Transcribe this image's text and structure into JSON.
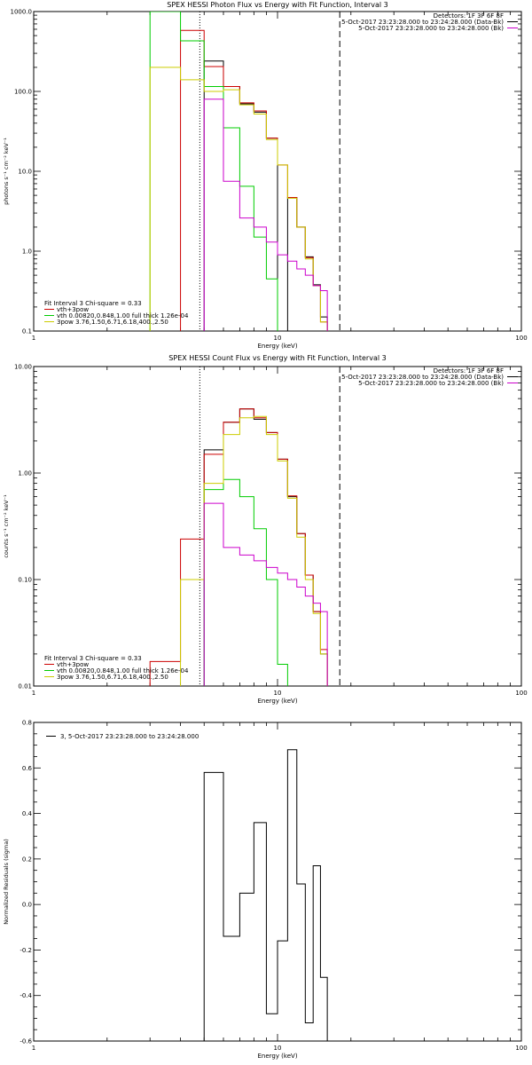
{
  "chart_data": [
    {
      "type": "line",
      "title": "SPEX HESSI Photon Flux vs Energy with Fit Function, Interval 3",
      "xlabel": "Energy (keV)",
      "ylabel": "photons s⁻¹ cm⁻² keV⁻¹",
      "xscale": "log",
      "yscale": "log",
      "xlim": [
        1,
        100
      ],
      "ylim": [
        0.1,
        1000
      ],
      "xticks": [
        {
          "v": 1,
          "label": "1"
        },
        {
          "v": 10,
          "label": "10"
        },
        {
          "v": 100,
          "label": "100"
        }
      ],
      "yticks": [
        {
          "v": 0.1,
          "label": "0.1"
        },
        {
          "v": 1,
          "label": "1.0"
        },
        {
          "v": 10,
          "label": "10.0"
        },
        {
          "v": 100,
          "label": "100.0"
        },
        {
          "v": 1000,
          "label": "1000.0"
        }
      ],
      "header": [
        "Detectors: 1F 3F 6F 8F",
        "5-Oct-2017 23:23:28.000 to 23:24:28.000 (Data-Bk)",
        "5-Oct-2017 23:23:28.000 to 23:24:28.000 (Bk)"
      ],
      "header_colors": [
        "",
        "#000000",
        "#cc00cc"
      ],
      "fit_text": [
        "Fit Interval 3   Chi-square = 0.33",
        "vth+3pow",
        "vth 0.00820,0.848,1.00  full thick 1.26e-04",
        "3pow 3.76,1.50,6.71,6.18,400.,2.50"
      ],
      "fit_colors": [
        "",
        "#cc0000",
        "#00cc00",
        "#cccc00"
      ],
      "vlines": [
        {
          "x": 4.8,
          "style": "dotted"
        },
        {
          "x": 18,
          "style": "dashed"
        }
      ],
      "edges": [
        3,
        4,
        5,
        6,
        7,
        8,
        9,
        10,
        11,
        12,
        13,
        14,
        15,
        16,
        17,
        18
      ],
      "series": [
        {
          "role": "Data-Bk",
          "color": "#000000",
          "values": [
            null,
            null,
            240,
            115,
            70,
            55,
            26,
            null,
            4.7,
            2,
            0.85,
            0.38,
            0.15,
            null,
            null
          ]
        },
        {
          "role": "vth+3pow",
          "color": "#cc0000",
          "values": [
            null,
            580,
            205,
            115,
            72,
            57,
            26,
            12,
            4.7,
            2,
            0.83,
            0.37,
            0.13,
            null,
            null
          ]
        },
        {
          "role": "vth",
          "color": "#00cc00",
          "values": [
            1000,
            430,
            115,
            35,
            6.5,
            1.5,
            0.45,
            0.05,
            null,
            null,
            null,
            null,
            null,
            null,
            null
          ]
        },
        {
          "role": "3pow",
          "color": "#cccc00",
          "values": [
            200,
            140,
            100,
            105,
            68,
            52,
            25,
            12,
            4.6,
            2,
            0.8,
            0.37,
            0.13,
            null,
            null
          ]
        },
        {
          "role": "Bk",
          "color": "#cc00cc",
          "values": [
            null,
            null,
            80,
            7.5,
            2.6,
            2,
            1.3,
            0.9,
            0.75,
            0.6,
            0.5,
            0.37,
            0.32,
            null,
            null
          ]
        }
      ]
    },
    {
      "type": "line",
      "title": "SPEX HESSI Count Flux vs Energy with Fit Function, Interval 3",
      "xlabel": "Energy (keV)",
      "ylabel": "counts s⁻¹ cm⁻² keV⁻¹",
      "xscale": "log",
      "yscale": "log",
      "xlim": [
        1,
        100
      ],
      "ylim": [
        0.01,
        10
      ],
      "xticks": [
        {
          "v": 1,
          "label": "1"
        },
        {
          "v": 10,
          "label": "10"
        },
        {
          "v": 100,
          "label": "100"
        }
      ],
      "yticks": [
        {
          "v": 0.01,
          "label": "0.01"
        },
        {
          "v": 0.1,
          "label": "0.10"
        },
        {
          "v": 1,
          "label": "1.00"
        },
        {
          "v": 10,
          "label": "10.00"
        }
      ],
      "header": [
        "Detectors: 1F 3F 6F 8F",
        "5-Oct-2017 23:23:28.000 to 23:24:28.000 (Data-Bk)",
        "5-Oct-2017 23:23:28.000 to 23:24:28.000 (Bk)"
      ],
      "header_colors": [
        "",
        "#000000",
        "#cc00cc"
      ],
      "fit_text": [
        "Fit Interval 3   Chi-square = 0.33",
        "vth+3pow",
        "vth 0.00820,0.848,1.00  full thick 1.26e-04",
        "3pow 3.76,1.50,6.71,6.18,400.,2.50"
      ],
      "fit_colors": [
        "",
        "#cc0000",
        "#00cc00",
        "#cccc00"
      ],
      "vlines": [
        {
          "x": 4.8,
          "style": "dotted"
        },
        {
          "x": 18,
          "style": "dashed"
        }
      ],
      "edges": [
        3,
        4,
        5,
        6,
        7,
        8,
        9,
        10,
        11,
        12,
        13,
        14,
        15,
        16,
        17,
        18,
        19
      ],
      "series": [
        {
          "role": "Data-Bk",
          "color": "#000000",
          "values": [
            null,
            null,
            1.65,
            3,
            4,
            3.2,
            2.4,
            1.35,
            0.6,
            0.27,
            0.11,
            0.05,
            0.02,
            null,
            null,
            null
          ]
        },
        {
          "role": "vth+3pow",
          "color": "#cc0000",
          "values": [
            0.017,
            0.24,
            1.5,
            3,
            4,
            3.3,
            2.4,
            1.35,
            0.61,
            0.27,
            0.11,
            0.05,
            0.022,
            null,
            null,
            null
          ]
        },
        {
          "role": "vth",
          "color": "#00cc00",
          "values": [
            null,
            null,
            0.7,
            0.87,
            0.6,
            0.3,
            0.1,
            0.016,
            null,
            null,
            null,
            null,
            null,
            null,
            null,
            null
          ]
        },
        {
          "role": "3pow",
          "color": "#cccc00",
          "values": [
            null,
            0.1,
            0.8,
            2.3,
            3.3,
            3.4,
            2.3,
            1.3,
            0.58,
            0.25,
            0.1,
            0.048,
            0.02,
            null,
            null,
            null
          ]
        },
        {
          "role": "Bk",
          "color": "#cc00cc",
          "values": [
            null,
            null,
            0.52,
            0.2,
            0.17,
            0.15,
            0.13,
            0.115,
            0.1,
            0.085,
            0.07,
            0.06,
            0.05,
            null,
            null,
            null
          ]
        }
      ]
    },
    {
      "type": "line",
      "title": "",
      "xlabel": "Energy (keV)",
      "ylabel": "Normalized Residuals (sigma)",
      "xscale": "log",
      "yscale": "linear",
      "xlim": [
        1,
        100
      ],
      "ylim": [
        -0.6,
        0.8
      ],
      "xticks": [
        {
          "v": 1,
          "label": "1"
        },
        {
          "v": 10,
          "label": "10"
        },
        {
          "v": 100,
          "label": "100"
        }
      ],
      "yticks": [
        {
          "v": -0.6,
          "label": "-0.6"
        },
        {
          "v": -0.4,
          "label": "-0.4"
        },
        {
          "v": -0.2,
          "label": "-0.2"
        },
        {
          "v": 0,
          "label": "0.0"
        },
        {
          "v": 0.2,
          "label": "0.2"
        },
        {
          "v": 0.4,
          "label": "0.4"
        },
        {
          "v": 0.6,
          "label": "0.6"
        },
        {
          "v": 0.8,
          "label": "0.8"
        }
      ],
      "legend": "3,  5-Oct-2017 23:23:28.000 to 23:24:28.000",
      "legend_color": "#000000",
      "edges": [
        5,
        6,
        7,
        8,
        9,
        10,
        11,
        12,
        13,
        14,
        15,
        16,
        17
      ],
      "series": [
        {
          "color": "#000000",
          "values": [
            0.58,
            -0.14,
            0.05,
            0.36,
            -0.48,
            -0.16,
            0.68,
            0.09,
            -0.52,
            0.17,
            -0.32,
            -0.6
          ]
        }
      ]
    }
  ]
}
